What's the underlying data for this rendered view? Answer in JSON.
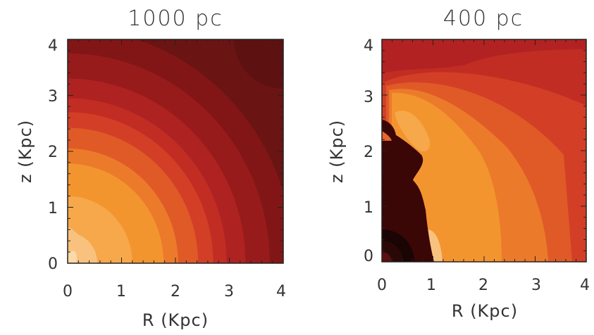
{
  "chart_data": [
    {
      "type": "heatmap",
      "title": "1000 pc",
      "xlabel": "R (Kpc)",
      "ylabel": "z (Kpc)",
      "xlim": [
        0,
        4
      ],
      "ylim": [
        0,
        4
      ],
      "x_ticks": [
        "0",
        "1",
        "2",
        "3",
        "4"
      ],
      "y_ticks": [
        "0",
        "1",
        "2",
        "3",
        "4"
      ],
      "colormap": [
        "#5c1111",
        "#6b1414",
        "#821616",
        "#981b1b",
        "#af2222",
        "#c22d23",
        "#d33f26",
        "#e05a28",
        "#ec7a2b",
        "#f3952f",
        "#f6a84a",
        "#f8c27e"
      ],
      "contour_radii_kpc": [
        4.6,
        4.2,
        3.75,
        3.3,
        2.95,
        2.7,
        2.42,
        2.05,
        1.78,
        1.2,
        0.55
      ],
      "grid": false
    },
    {
      "type": "heatmap",
      "title": "400 pc",
      "xlabel": "R (Kpc)",
      "ylabel": "z (Kpc)",
      "xlim": [
        0,
        4
      ],
      "ylim": [
        0,
        4
      ],
      "x_ticks": [
        "0",
        "1",
        "2",
        "3",
        "4"
      ],
      "y_ticks": [
        "0",
        "1",
        "2",
        "3",
        "4"
      ],
      "colormap": [
        "#3a0606",
        "#c22d23",
        "#d33f26",
        "#e05a28",
        "#ec7a2b",
        "#f3952f",
        "#f8c27e"
      ],
      "grid": false
    }
  ]
}
